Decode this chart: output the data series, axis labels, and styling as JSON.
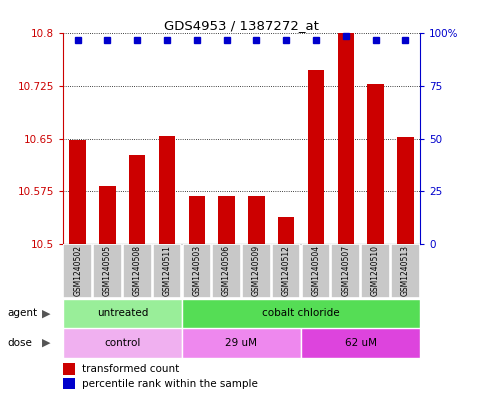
{
  "title": "GDS4953 / 1387272_at",
  "samples": [
    "GSM1240502",
    "GSM1240505",
    "GSM1240508",
    "GSM1240511",
    "GSM1240503",
    "GSM1240506",
    "GSM1240509",
    "GSM1240512",
    "GSM1240504",
    "GSM1240507",
    "GSM1240510",
    "GSM1240513"
  ],
  "transformed_counts": [
    10.648,
    10.582,
    10.627,
    10.653,
    10.568,
    10.568,
    10.568,
    10.538,
    10.748,
    10.8,
    10.728,
    10.652
  ],
  "percentile_ranks": [
    97,
    97,
    97,
    97,
    97,
    97,
    97,
    97,
    97,
    99,
    97,
    97
  ],
  "ylim_left": [
    10.5,
    10.8
  ],
  "ylim_right": [
    0,
    100
  ],
  "yticks_left": [
    10.5,
    10.575,
    10.65,
    10.725,
    10.8
  ],
  "yticks_right": [
    0,
    25,
    50,
    75,
    100
  ],
  "bar_color": "#cc0000",
  "dot_color": "#0000cc",
  "agent_groups": [
    {
      "label": "untreated",
      "start": 0,
      "end": 4,
      "color": "#99ee99"
    },
    {
      "label": "cobalt chloride",
      "start": 4,
      "end": 12,
      "color": "#55dd55"
    }
  ],
  "dose_groups": [
    {
      "label": "control",
      "start": 0,
      "end": 4,
      "color": "#f0b0f0"
    },
    {
      "label": "29 uM",
      "start": 4,
      "end": 8,
      "color": "#ee88ee"
    },
    {
      "label": "62 uM",
      "start": 8,
      "end": 12,
      "color": "#dd44dd"
    }
  ],
  "legend_bar_label": "transformed count",
  "legend_dot_label": "percentile rank within the sample",
  "background_color": "#ffffff",
  "tick_label_color_left": "#cc0000",
  "tick_label_color_right": "#0000cc",
  "sample_box_color": "#c8c8c8",
  "agent_label": "agent",
  "dose_label": "dose"
}
